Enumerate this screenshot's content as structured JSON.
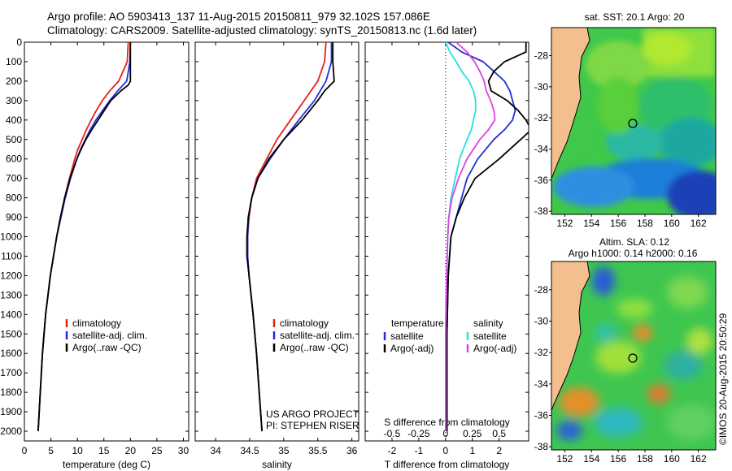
{
  "title_line1": "Argo profile: AO 5903413_137 11-Aug-2015 20150811_979 32.102S 157.086E",
  "title_line2": "Climatology: CARS2009. Satellite-adjusted climatology: synTS_20150813.nc (1.6d later)",
  "project_line1": "US ARGO PROJECT",
  "project_line2": "PI: STEPHEN RISER",
  "credit": "©IMOS 20-Aug-2015 20:50:29",
  "colors": {
    "climatology": "#e8201a",
    "satellite": "#1f2fd6",
    "argo": "#000000",
    "sal_satellite": "#27e0e0",
    "sal_argo": "#e040e0",
    "land": "#f4bf8e"
  },
  "chart_data": [
    {
      "type": "line",
      "panel": "temperature",
      "xlabel": "temperature (deg C)",
      "ylabel": "",
      "xlim": [
        0,
        31
      ],
      "ylim": [
        2050,
        0
      ],
      "xticks": [
        "0",
        "5",
        "10",
        "15",
        "20",
        "25",
        "30"
      ],
      "yticks": [
        "0",
        "100",
        "200",
        "300",
        "400",
        "500",
        "600",
        "700",
        "800",
        "900",
        "1000",
        "1100",
        "1200",
        "1300",
        "1400",
        "1500",
        "1600",
        "1700",
        "1800",
        "1900",
        "2000"
      ],
      "legend": [
        "climatology",
        "satellite-adj. clim.",
        "Argo(..raw -QC)"
      ],
      "series": [
        {
          "name": "climatology",
          "color_key": "climatology",
          "depth": [
            0,
            100,
            200,
            250,
            300,
            350,
            400,
            450,
            500,
            550,
            600,
            700,
            800,
            900,
            1000,
            1200,
            1400,
            1600,
            1800,
            2000
          ],
          "values": [
            19.6,
            19.4,
            17.8,
            16.1,
            14.7,
            13.6,
            12.6,
            11.7,
            10.9,
            10.1,
            9.5,
            8.5,
            7.6,
            6.8,
            6.1,
            4.9,
            4.0,
            3.4,
            3.0,
            2.6
          ]
        },
        {
          "name": "satellite-adj. clim.",
          "color_key": "satellite",
          "depth": [
            0,
            100,
            200,
            250,
            300,
            350,
            400,
            450,
            500,
            550,
            600,
            700,
            800,
            900,
            1000,
            1200,
            1400,
            1600,
            1800,
            2000
          ],
          "values": [
            20.0,
            19.9,
            19.3,
            17.6,
            16.1,
            14.8,
            13.5,
            12.4,
            11.5,
            10.6,
            9.9,
            8.7,
            7.7,
            6.9,
            6.1,
            4.9,
            4.0,
            3.4,
            3.0,
            2.6
          ]
        },
        {
          "name": "Argo(..raw -QC)",
          "color_key": "argo",
          "depth": [
            0,
            100,
            200,
            220,
            250,
            300,
            350,
            400,
            450,
            500,
            550,
            600,
            700,
            800,
            900,
            1000,
            1200,
            1400,
            1600,
            1800,
            2000
          ],
          "values": [
            20.0,
            20.0,
            20.0,
            19.6,
            18.2,
            16.3,
            15.1,
            13.9,
            12.7,
            11.6,
            10.7,
            9.9,
            8.6,
            7.6,
            6.8,
            6.1,
            4.9,
            4.0,
            3.4,
            3.0,
            2.6
          ]
        }
      ]
    },
    {
      "type": "line",
      "panel": "salinity",
      "xlabel": "salinity",
      "ylabel": "",
      "xlim": [
        33.7,
        36.1
      ],
      "ylim": [
        2050,
        0
      ],
      "xticks": [
        "34",
        "34.5",
        "35",
        "35.5",
        "36"
      ],
      "legend": [
        "climatology",
        "satellite-adj. clim.",
        "Argo(..raw -QC)"
      ],
      "series": [
        {
          "name": "climatology",
          "color_key": "climatology",
          "depth": [
            0,
            100,
            200,
            300,
            400,
            500,
            600,
            700,
            800,
            900,
            1000,
            1100,
            1200,
            1400,
            1600,
            1800,
            2000
          ],
          "values": [
            35.62,
            35.6,
            35.5,
            35.3,
            35.1,
            34.9,
            34.75,
            34.6,
            34.53,
            34.49,
            34.47,
            34.47,
            34.49,
            34.55,
            34.6,
            34.64,
            34.68
          ]
        },
        {
          "name": "satellite-adj. clim.",
          "color_key": "satellite",
          "depth": [
            0,
            100,
            200,
            300,
            400,
            500,
            600,
            700,
            800,
            900,
            1000,
            1100,
            1200,
            1400,
            1600,
            1800,
            2000
          ],
          "values": [
            35.7,
            35.7,
            35.62,
            35.45,
            35.22,
            35.0,
            34.8,
            34.62,
            34.53,
            34.48,
            34.47,
            34.47,
            34.49,
            34.55,
            34.6,
            34.64,
            34.68
          ]
        },
        {
          "name": "Argo(..raw -QC)",
          "color_key": "argo",
          "depth": [
            0,
            100,
            200,
            250,
            300,
            400,
            500,
            600,
            700,
            800,
            900,
            1000,
            1100,
            1200,
            1400,
            1600,
            1800,
            2000
          ],
          "values": [
            35.72,
            35.72,
            35.74,
            35.6,
            35.5,
            35.27,
            35.0,
            34.78,
            34.62,
            34.53,
            34.48,
            34.46,
            34.46,
            34.49,
            34.55,
            34.6,
            34.64,
            34.68
          ]
        }
      ]
    },
    {
      "type": "line",
      "panel": "difference",
      "xlabel": "T difference from climatology",
      "xlabel2": "S difference from climatology",
      "xlim": [
        -3,
        3.1
      ],
      "ylim": [
        2050,
        0
      ],
      "xticks": [
        "-2",
        "-1",
        "0",
        "1",
        "2"
      ],
      "xticks_s": [
        "-0.5",
        "-0.25",
        "0",
        "0.25",
        "0.5"
      ],
      "legend_headers": [
        "temperature",
        "salinity"
      ],
      "legend": [
        "satellite",
        "Argo(-adj)",
        "satellite",
        "Argo(-adj)"
      ],
      "series": [
        {
          "name": "satellite",
          "group": "temperature",
          "color_key": "satellite",
          "depth": [
            0,
            50,
            100,
            150,
            200,
            250,
            300,
            350,
            400,
            450,
            500,
            600,
            700,
            800,
            900,
            1000,
            1200,
            1500,
            1800,
            2000
          ],
          "values": [
            0.1,
            0.6,
            1.4,
            1.8,
            2.2,
            2.4,
            2.5,
            2.6,
            2.5,
            2.2,
            1.8,
            1.2,
            0.8,
            0.6,
            0.4,
            0.2,
            0.1,
            0.05,
            0.05,
            0.05
          ]
        },
        {
          "name": "Argo(-adj)",
          "group": "temperature",
          "color_key": "argo",
          "depth": [
            0,
            50,
            100,
            150,
            200,
            250,
            300,
            350,
            400,
            450,
            500,
            600,
            700,
            800,
            900,
            1000,
            1200,
            1500,
            1800,
            2000
          ],
          "values": [
            3.0,
            3.0,
            2.2,
            1.8,
            1.6,
            1.7,
            2.3,
            2.7,
            3.0,
            3.2,
            2.8,
            2.0,
            1.1,
            0.7,
            0.4,
            0.2,
            0.1,
            0.05,
            0.05,
            0.05
          ]
        },
        {
          "name": "satellite",
          "group": "salinity",
          "color_key": "sal_satellite",
          "depth": [
            0,
            50,
            100,
            150,
            200,
            250,
            300,
            350,
            400,
            450,
            500,
            600,
            700,
            800,
            900,
            1000,
            1200,
            1500,
            1800,
            2000
          ],
          "values": [
            0.0,
            0.04,
            0.1,
            0.15,
            0.22,
            0.26,
            0.28,
            0.28,
            0.26,
            0.24,
            0.2,
            0.13,
            0.09,
            0.05,
            0.03,
            0.02,
            0.01,
            0.0,
            0.0,
            0.0
          ]
        },
        {
          "name": "Argo(-adj)",
          "group": "salinity",
          "color_key": "sal_argo",
          "depth": [
            0,
            50,
            100,
            150,
            200,
            250,
            300,
            350,
            400,
            450,
            500,
            600,
            700,
            800,
            900,
            1000,
            1200,
            1500,
            1800,
            2000
          ],
          "values": [
            0.1,
            0.2,
            0.27,
            0.32,
            0.36,
            0.38,
            0.42,
            0.45,
            0.46,
            0.4,
            0.32,
            0.2,
            0.12,
            0.06,
            0.03,
            0.02,
            0.01,
            0.0,
            0.0,
            0.0
          ]
        }
      ]
    },
    {
      "type": "heatmap",
      "panel": "sst-map",
      "title": "sat. SST: 20.1 Argo: 20",
      "xticks": [
        "152",
        "154",
        "156",
        "158",
        "160",
        "162"
      ],
      "yticks": [
        "-28",
        "-30",
        "-32",
        "-34",
        "-36",
        "-38"
      ],
      "xlim": [
        151,
        163.3
      ],
      "ylim": [
        -38.2,
        -26.2
      ],
      "float_position": {
        "lon": 157.086,
        "lat": -32.102
      }
    },
    {
      "type": "heatmap",
      "panel": "sla-map",
      "title_line1": "Altim. SLA: 0.12",
      "title_line2": "Argo h1000: 0.14  h2000: 0.16",
      "xticks": [
        "152",
        "154",
        "156",
        "158",
        "160",
        "162"
      ],
      "yticks": [
        "-28",
        "-30",
        "-32",
        "-34",
        "-36",
        "-38"
      ],
      "xlim": [
        151,
        163.3
      ],
      "ylim": [
        -38.2,
        -26.2
      ],
      "float_position": {
        "lon": 157.086,
        "lat": -32.102
      }
    }
  ]
}
